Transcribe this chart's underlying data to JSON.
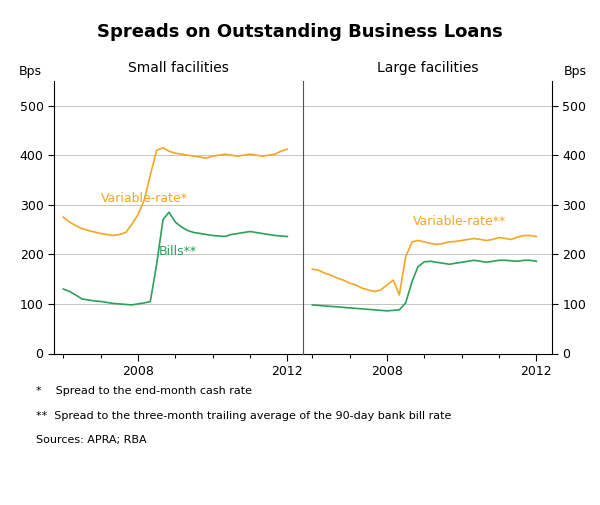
{
  "title": "Spreads on Outstanding Business Loans",
  "subtitle_left": "Small facilities",
  "subtitle_right": "Large facilities",
  "ylabel_left": "Bps",
  "ylabel_right": "Bps",
  "ylim": [
    0,
    550
  ],
  "yticks": [
    0,
    100,
    200,
    300,
    400,
    500
  ],
  "orange_color": "#F5A623",
  "green_color": "#2CA05A",
  "footnote1": "*    Spread to the end-month cash rate",
  "footnote2": "**  Spread to the three-month trailing average of the 90-day bank bill rate",
  "footnote3": "Sources: APRA; RBA",
  "small_var_label": "Variable-rate*",
  "small_bills_label": "Bills**",
  "large_var_label": "Variable-rate**",
  "small_var_x": [
    2006.0,
    2006.17,
    2006.33,
    2006.5,
    2006.67,
    2006.83,
    2007.0,
    2007.17,
    2007.33,
    2007.5,
    2007.67,
    2007.83,
    2008.0,
    2008.17,
    2008.33,
    2008.5,
    2008.67,
    2008.83,
    2009.0,
    2009.17,
    2009.33,
    2009.5,
    2009.67,
    2009.83,
    2010.0,
    2010.17,
    2010.33,
    2010.5,
    2010.67,
    2010.83,
    2011.0,
    2011.17,
    2011.33,
    2011.5,
    2011.67,
    2011.83,
    2012.0
  ],
  "small_var_y": [
    275,
    265,
    258,
    252,
    248,
    245,
    242,
    240,
    238,
    240,
    244,
    260,
    280,
    310,
    360,
    410,
    415,
    408,
    404,
    402,
    400,
    398,
    396,
    394,
    398,
    400,
    402,
    400,
    398,
    400,
    402,
    400,
    398,
    400,
    402,
    408,
    412
  ],
  "small_bills_x": [
    2006.0,
    2006.17,
    2006.33,
    2006.5,
    2006.67,
    2006.83,
    2007.0,
    2007.17,
    2007.33,
    2007.5,
    2007.67,
    2007.83,
    2008.0,
    2008.17,
    2008.33,
    2008.5,
    2008.67,
    2008.83,
    2009.0,
    2009.17,
    2009.33,
    2009.5,
    2009.67,
    2009.83,
    2010.0,
    2010.17,
    2010.33,
    2010.5,
    2010.67,
    2010.83,
    2011.0,
    2011.17,
    2011.33,
    2011.5,
    2011.67,
    2011.83,
    2012.0
  ],
  "small_bills_y": [
    130,
    125,
    118,
    110,
    108,
    106,
    105,
    103,
    101,
    100,
    99,
    98,
    100,
    102,
    105,
    180,
    270,
    285,
    265,
    255,
    248,
    244,
    242,
    240,
    238,
    237,
    236,
    240,
    242,
    244,
    246,
    244,
    242,
    240,
    238,
    237,
    236
  ],
  "large_var_x": [
    2006.0,
    2006.17,
    2006.33,
    2006.5,
    2006.67,
    2006.83,
    2007.0,
    2007.17,
    2007.33,
    2007.5,
    2007.67,
    2007.83,
    2008.0,
    2008.17,
    2008.33,
    2008.5,
    2008.67,
    2008.83,
    2009.0,
    2009.17,
    2009.33,
    2009.5,
    2009.67,
    2009.83,
    2010.0,
    2010.17,
    2010.33,
    2010.5,
    2010.67,
    2010.83,
    2011.0,
    2011.17,
    2011.33,
    2011.5,
    2011.67,
    2011.83,
    2012.0
  ],
  "large_var_y": [
    170,
    168,
    162,
    158,
    152,
    148,
    142,
    138,
    132,
    128,
    125,
    128,
    138,
    148,
    118,
    195,
    225,
    228,
    225,
    222,
    220,
    222,
    225,
    226,
    228,
    230,
    232,
    230,
    228,
    230,
    234,
    232,
    230,
    235,
    238,
    238,
    236
  ],
  "large_bills_x": [
    2006.0,
    2006.17,
    2006.33,
    2006.5,
    2006.67,
    2006.83,
    2007.0,
    2007.17,
    2007.33,
    2007.5,
    2007.67,
    2007.83,
    2008.0,
    2008.17,
    2008.33,
    2008.5,
    2008.67,
    2008.83,
    2009.0,
    2009.17,
    2009.33,
    2009.5,
    2009.67,
    2009.83,
    2010.0,
    2010.17,
    2010.33,
    2010.5,
    2010.67,
    2010.83,
    2011.0,
    2011.17,
    2011.33,
    2011.5,
    2011.67,
    2011.83,
    2012.0
  ],
  "large_bills_y": [
    98,
    97,
    96,
    95,
    94,
    93,
    92,
    91,
    90,
    89,
    88,
    87,
    86,
    87,
    88,
    102,
    145,
    175,
    185,
    186,
    184,
    182,
    180,
    182,
    184,
    186,
    188,
    186,
    184,
    186,
    188,
    188,
    187,
    186,
    188,
    188,
    186
  ]
}
